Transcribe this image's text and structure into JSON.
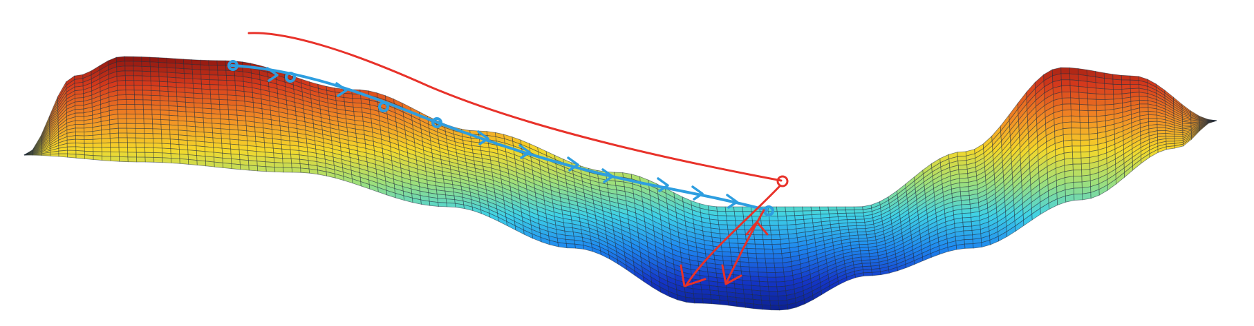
{
  "figure": {
    "type": "3d-surface-sketch",
    "colormap": [
      "#7a0d0d",
      "#d63a1c",
      "#f28a24",
      "#f5d82a",
      "#9fe07a",
      "#3fd2e6",
      "#1e88f0",
      "#1436c8",
      "#0b1e8a"
    ],
    "mesh_line_color": "#1d2a3a",
    "annotations": {
      "descent_path_color": "#2e9ee0",
      "overshoot_path_color": "#e8322a"
    }
  }
}
